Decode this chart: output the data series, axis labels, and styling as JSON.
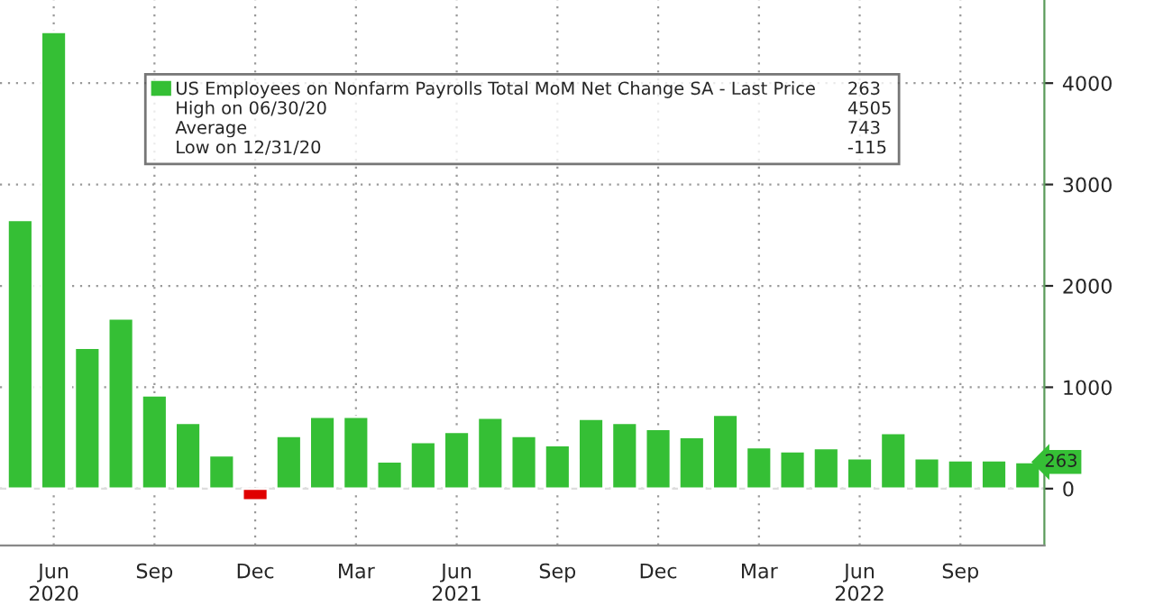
{
  "chart_data": {
    "type": "bar",
    "categories": [
      null,
      "Jun\n2020",
      null,
      null,
      "Sep",
      null,
      null,
      "Dec",
      null,
      null,
      "Mar",
      null,
      null,
      "Jun\n2021",
      null,
      null,
      "Sep",
      null,
      null,
      "Dec",
      null,
      null,
      "Mar",
      null,
      null,
      "Jun\n2022",
      null,
      null,
      "Sep",
      null,
      null
    ],
    "series": [
      {
        "name": "US Employees on Nonfarm Payrolls Total MoM Net Change SA - Last Price",
        "color": "#35bf35",
        "values": [
          2650,
          4505,
          1390,
          1680,
          920,
          650,
          330,
          -115,
          520,
          710,
          710,
          270,
          460,
          560,
          700,
          520,
          430,
          690,
          650,
          590,
          510,
          730,
          410,
          370,
          400,
          300,
          550,
          300,
          280,
          280,
          263
        ],
        "colors": [
          "#35bf35",
          "#35bf35",
          "#35bf35",
          "#35bf35",
          "#35bf35",
          "#35bf35",
          "#35bf35",
          "#e00000",
          "#35bf35",
          "#35bf35",
          "#35bf35",
          "#35bf35",
          "#35bf35",
          "#35bf35",
          "#35bf35",
          "#35bf35",
          "#35bf35",
          "#35bf35",
          "#35bf35",
          "#35bf35",
          "#35bf35",
          "#35bf35",
          "#35bf35",
          "#35bf35",
          "#35bf35",
          "#35bf35",
          "#35bf35",
          "#35bf35",
          "#35bf35",
          "#35bf35",
          "#35bf35"
        ]
      }
    ],
    "ylim": [
      -560,
      4820
    ],
    "yticks": [
      0,
      1000,
      2000,
      3000,
      4000
    ],
    "grid": true,
    "legend": "top",
    "annotations": [
      "263",
      "High on 06/30/20",
      "4505",
      "Average",
      "743",
      "Low on 12/31/20",
      "-115",
      "263"
    ]
  }
}
